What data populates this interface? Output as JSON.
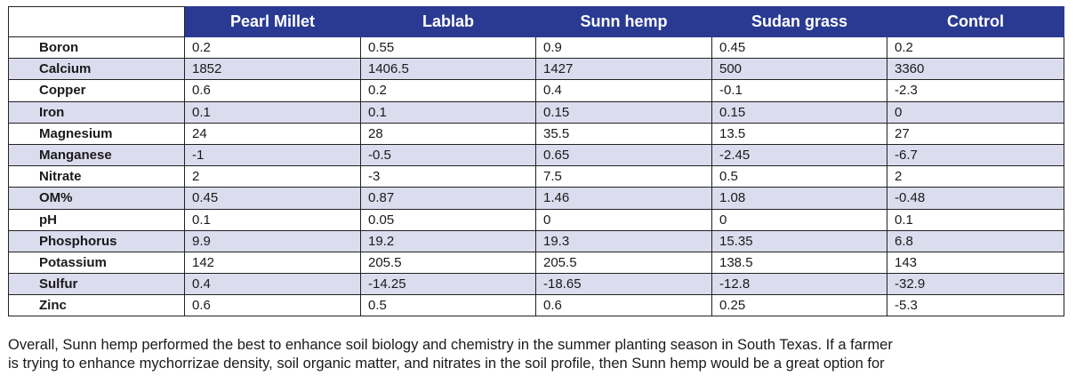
{
  "table": {
    "columns": [
      "Pearl Millet",
      "Lablab",
      "Sunn hemp",
      "Sudan grass",
      "Control"
    ],
    "rows": [
      {
        "label": "Boron",
        "values": [
          "0.2",
          "0.55",
          "0.9",
          "0.45",
          "0.2"
        ]
      },
      {
        "label": "Calcium",
        "values": [
          "1852",
          "1406.5",
          "1427",
          "500",
          "3360"
        ]
      },
      {
        "label": "Copper",
        "values": [
          "0.6",
          "0.2",
          "0.4",
          "-0.1",
          "-2.3"
        ]
      },
      {
        "label": "Iron",
        "values": [
          "0.1",
          "0.1",
          "0.15",
          "0.15",
          "0"
        ]
      },
      {
        "label": "Magnesium",
        "values": [
          "24",
          "28",
          "35.5",
          "13.5",
          "27"
        ]
      },
      {
        "label": "Manganese",
        "values": [
          "-1",
          "-0.5",
          "0.65",
          "-2.45",
          "-6.7"
        ]
      },
      {
        "label": "Nitrate",
        "values": [
          "2",
          "-3",
          "7.5",
          "0.5",
          "2"
        ]
      },
      {
        "label": "OM%",
        "values": [
          "0.45",
          "0.87",
          "1.46",
          "1.08",
          "-0.48"
        ]
      },
      {
        "label": "pH",
        "values": [
          "0.1",
          "0.05",
          "0",
          "0",
          "0.1"
        ]
      },
      {
        "label": "Phosphorus",
        "values": [
          "9.9",
          "19.2",
          "19.3",
          "15.35",
          "6.8"
        ]
      },
      {
        "label": "Potassium",
        "values": [
          "142",
          "205.5",
          "205.5",
          "138.5",
          "143"
        ]
      },
      {
        "label": "Sulfur",
        "values": [
          "0.4",
          "-14.25",
          "-18.65",
          "-12.8",
          "-32.9"
        ]
      },
      {
        "label": "Zinc",
        "values": [
          "0.6",
          "0.5",
          "0.6",
          "0.25",
          "-5.3"
        ]
      }
    ]
  },
  "paragraph": {
    "line1": "Overall, Sunn hemp performed the best to enhance soil biology and chemistry in the summer planting season in South Texas. If a farmer",
    "line2": "is trying to enhance mychorrizae density, soil organic matter, and nitrates in the soil profile, then Sunn hemp would be a great option for"
  },
  "colors": {
    "header_bg": "#2a3a92",
    "stripe_bg": "#dcdcef"
  }
}
